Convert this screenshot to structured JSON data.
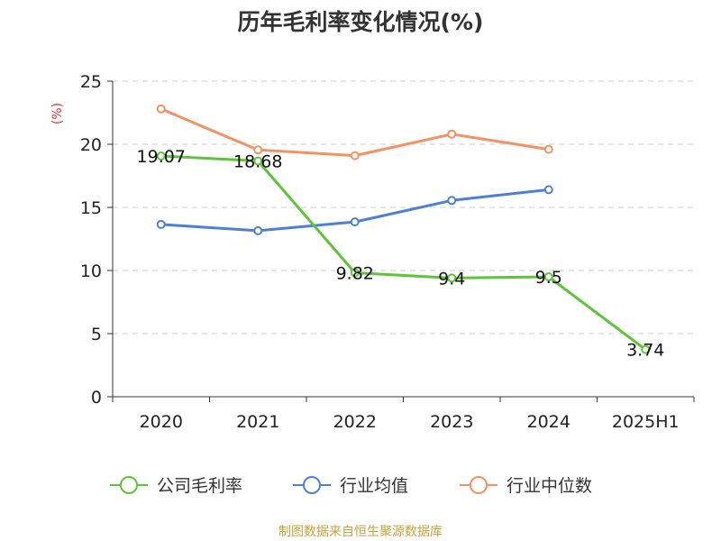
{
  "chart_data": {
    "type": "line",
    "title": "历年毛利率变化情况(%)",
    "ylabel": "(%)",
    "ylim": [
      0,
      25
    ],
    "yticks": [
      0,
      5,
      10,
      15,
      20,
      25
    ],
    "grid": true,
    "legend_position": "bottom",
    "categories": [
      "2020",
      "2021",
      "2022",
      "2023",
      "2024",
      "2025H1"
    ],
    "series": [
      {
        "name": "公司毛利率",
        "color": "#5ec43a",
        "values": [
          19.07,
          18.68,
          9.82,
          9.4,
          9.5,
          3.74
        ],
        "labels": [
          "19.07",
          "18.68",
          "9.82",
          "9.4",
          "9.5",
          "3.74"
        ]
      },
      {
        "name": "行业均值",
        "color": "#4e7fd8",
        "values": [
          13.65,
          13.15,
          13.85,
          15.55,
          16.4,
          null
        ]
      },
      {
        "name": "行业中位数",
        "color": "#f59263",
        "values": [
          22.8,
          19.55,
          19.1,
          20.8,
          19.6,
          null
        ]
      }
    ]
  },
  "source_text": "制图数据来自恒生聚源数据库",
  "colors": {
    "unit_label": "#e83030",
    "source_text": "#c8a23c",
    "grid": "#cccccc",
    "axis": "#333333"
  }
}
